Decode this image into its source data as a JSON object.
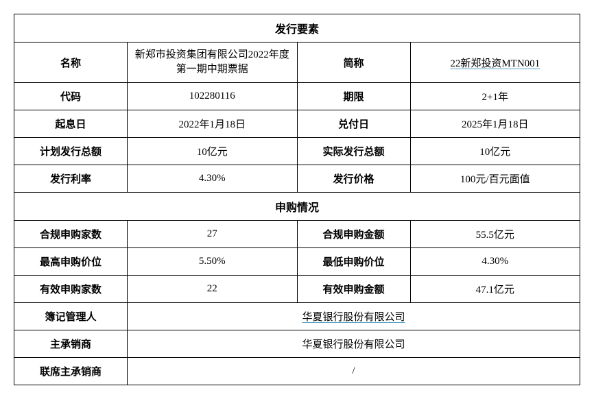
{
  "section1_title": "发行要素",
  "section2_title": "申购情况",
  "rows": {
    "name": {
      "label": "名称",
      "value": "新郑市投资集团有限公司2022年度第一期中期票据"
    },
    "short_name": {
      "label": "简称",
      "value": "22新郑投资MTN001"
    },
    "code": {
      "label": "代码",
      "value": "102280116"
    },
    "term": {
      "label": "期限",
      "value": "2+1年"
    },
    "interest_start": {
      "label": "起息日",
      "value": "2022年1月18日"
    },
    "redemption_date": {
      "label": "兑付日",
      "value": "2025年1月18日"
    },
    "planned_total": {
      "label": "计划发行总额",
      "value": "10亿元"
    },
    "actual_total": {
      "label": "实际发行总额",
      "value": "10亿元"
    },
    "issue_rate": {
      "label": "发行利率",
      "value": "4.30%"
    },
    "issue_price": {
      "label": "发行价格",
      "value": "100元/百元面值"
    },
    "valid_bidders": {
      "label": "合规申购家数",
      "value": "27"
    },
    "valid_amount": {
      "label": "合规申购金额",
      "value": "55.5亿元"
    },
    "max_bid": {
      "label": "最高申购价位",
      "value": "5.50%"
    },
    "min_bid": {
      "label": "最低申购价位",
      "value": "4.30%"
    },
    "effective_bidders": {
      "label": "有效申购家数",
      "value": "22"
    },
    "effective_amount": {
      "label": "有效申购金额",
      "value": "47.1亿元"
    },
    "book_manager": {
      "label": "簿记管理人",
      "value": "华夏银行股份有限公司"
    },
    "lead_underwriter": {
      "label": "主承销商",
      "value": "华夏银行股份有限公司"
    },
    "joint_underwriter": {
      "label": "联席主承销商",
      "value": "/"
    }
  },
  "colors": {
    "border": "#000000",
    "background": "#ffffff",
    "underline": "#4a9bc4"
  }
}
